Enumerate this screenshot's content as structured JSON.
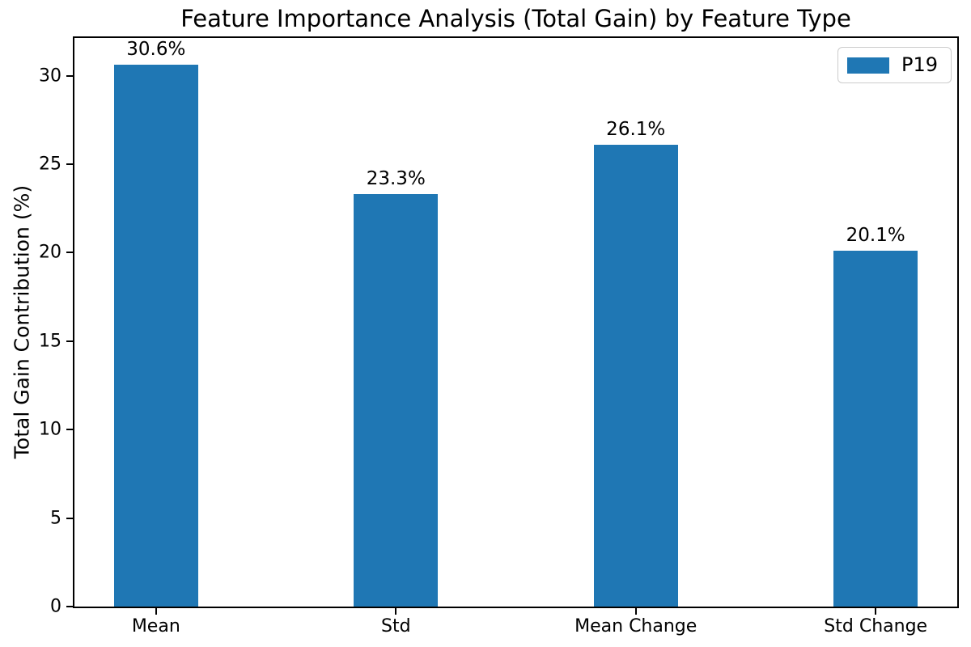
{
  "chart_data": {
    "type": "bar",
    "title": "Feature Importance Analysis (Total Gain) by Feature Type",
    "xlabel": "",
    "ylabel": "Total Gain Contribution (%)",
    "categories": [
      "Mean",
      "Std",
      "Mean Change",
      "Std Change"
    ],
    "values": [
      30.6,
      23.3,
      26.1,
      20.1
    ],
    "value_labels": [
      "30.6%",
      "23.3%",
      "26.1%",
      "20.1%"
    ],
    "series_name": "P19",
    "bar_color": "#1f77b4",
    "ylim": [
      0,
      32.13
    ],
    "yticks": [
      0,
      5,
      10,
      15,
      20,
      25,
      30
    ],
    "xlim": [
      -0.34,
      3.34
    ],
    "bar_width": 0.35,
    "grid": false,
    "legend": {
      "label": "P19",
      "position": "upper right"
    },
    "axis_color": "#000000",
    "background_color": "#ffffff"
  }
}
